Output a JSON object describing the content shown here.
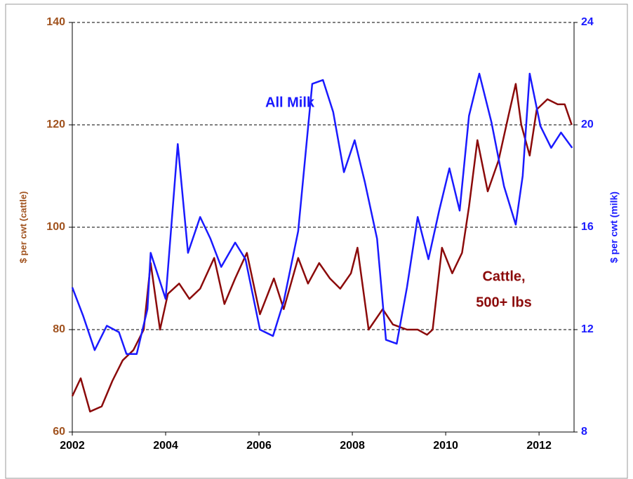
{
  "chart_data": {
    "type": "line",
    "y_label": "$ per cwt (cattle)",
    "y2_label": "$ per cwt (milk)",
    "annotations": [
      "All Milk",
      "Cattle,",
      "500+ lbs"
    ],
    "xlim": [
      2002,
      2012.75
    ],
    "xticks": [
      2002,
      2004,
      2006,
      2008,
      2010,
      2012
    ],
    "ylim": [
      60,
      140
    ],
    "yticks": [
      60,
      80,
      100,
      120,
      140
    ],
    "y2lim": [
      8,
      24
    ],
    "y2ticks": [
      8,
      12,
      16,
      20,
      24
    ],
    "grid": true,
    "y_color": "#a0521e",
    "y2_color": "#1a1aff",
    "series": [
      {
        "name": "Cattle, 500+ lbs",
        "color": "#8b0a0a",
        "axis": "y",
        "x": [
          2002,
          2002.18,
          2002.38,
          2002.63,
          2002.86,
          2003.08,
          2003.31,
          2003.53,
          2003.68,
          2003.88,
          2004.05,
          2004.29,
          2004.51,
          2004.74,
          2005.04,
          2005.26,
          2005.49,
          2005.74,
          2006.02,
          2006.32,
          2006.53,
          2006.84,
          2007.05,
          2007.29,
          2007.52,
          2007.74,
          2007.97,
          2008.11,
          2008.35,
          2008.65,
          2008.87,
          2009.17,
          2009.4,
          2009.6,
          2009.72,
          2009.92,
          2010.14,
          2010.35,
          2010.5,
          2010.68,
          2010.9,
          2011.13,
          2011.35,
          2011.5,
          2011.62,
          2011.8,
          2011.95,
          2012.18,
          2012.4,
          2012.55,
          2012.7
        ],
        "values": [
          67,
          70.5,
          64,
          65,
          70,
          74,
          76,
          80,
          93,
          80,
          87,
          89,
          86,
          88,
          94,
          85,
          90,
          95,
          83,
          90,
          84,
          94,
          89,
          93,
          90,
          88,
          91,
          96,
          80,
          84,
          81,
          80,
          80,
          79,
          80,
          96,
          91,
          95,
          104,
          117,
          107,
          113,
          122,
          128,
          120,
          114,
          123,
          125,
          124,
          124,
          120
        ]
      },
      {
        "name": "All Milk",
        "color": "#1a1aff",
        "axis": "y2",
        "x": [
          2002,
          2002.23,
          2002.48,
          2002.74,
          2003.0,
          2003.16,
          2003.38,
          2003.61,
          2003.68,
          2004.0,
          2004.26,
          2004.48,
          2004.74,
          2004.96,
          2005.19,
          2005.49,
          2005.71,
          2006.02,
          2006.3,
          2006.53,
          2006.84,
          2007.14,
          2007.37,
          2007.59,
          2007.82,
          2008.05,
          2008.27,
          2008.53,
          2008.72,
          2008.95,
          2009.17,
          2009.4,
          2009.63,
          2009.86,
          2010.08,
          2010.3,
          2010.5,
          2010.72,
          2010.98,
          2011.25,
          2011.5,
          2011.65,
          2011.8,
          2012.03,
          2012.26,
          2012.47,
          2012.71
        ],
        "values": [
          13.65,
          12.55,
          11.2,
          12.15,
          11.9,
          11.05,
          11.05,
          12.8,
          15.0,
          13.2,
          19.25,
          15.0,
          16.4,
          15.55,
          14.45,
          15.4,
          14.75,
          12.0,
          11.75,
          13.1,
          15.85,
          21.6,
          21.75,
          20.5,
          18.15,
          19.4,
          17.75,
          15.55,
          11.6,
          11.45,
          13.65,
          16.4,
          14.75,
          16.65,
          18.3,
          16.65,
          20.35,
          22.0,
          20.1,
          17.6,
          16.1,
          18.0,
          22.0,
          19.95,
          19.1,
          19.7,
          19.1
        ]
      }
    ]
  }
}
